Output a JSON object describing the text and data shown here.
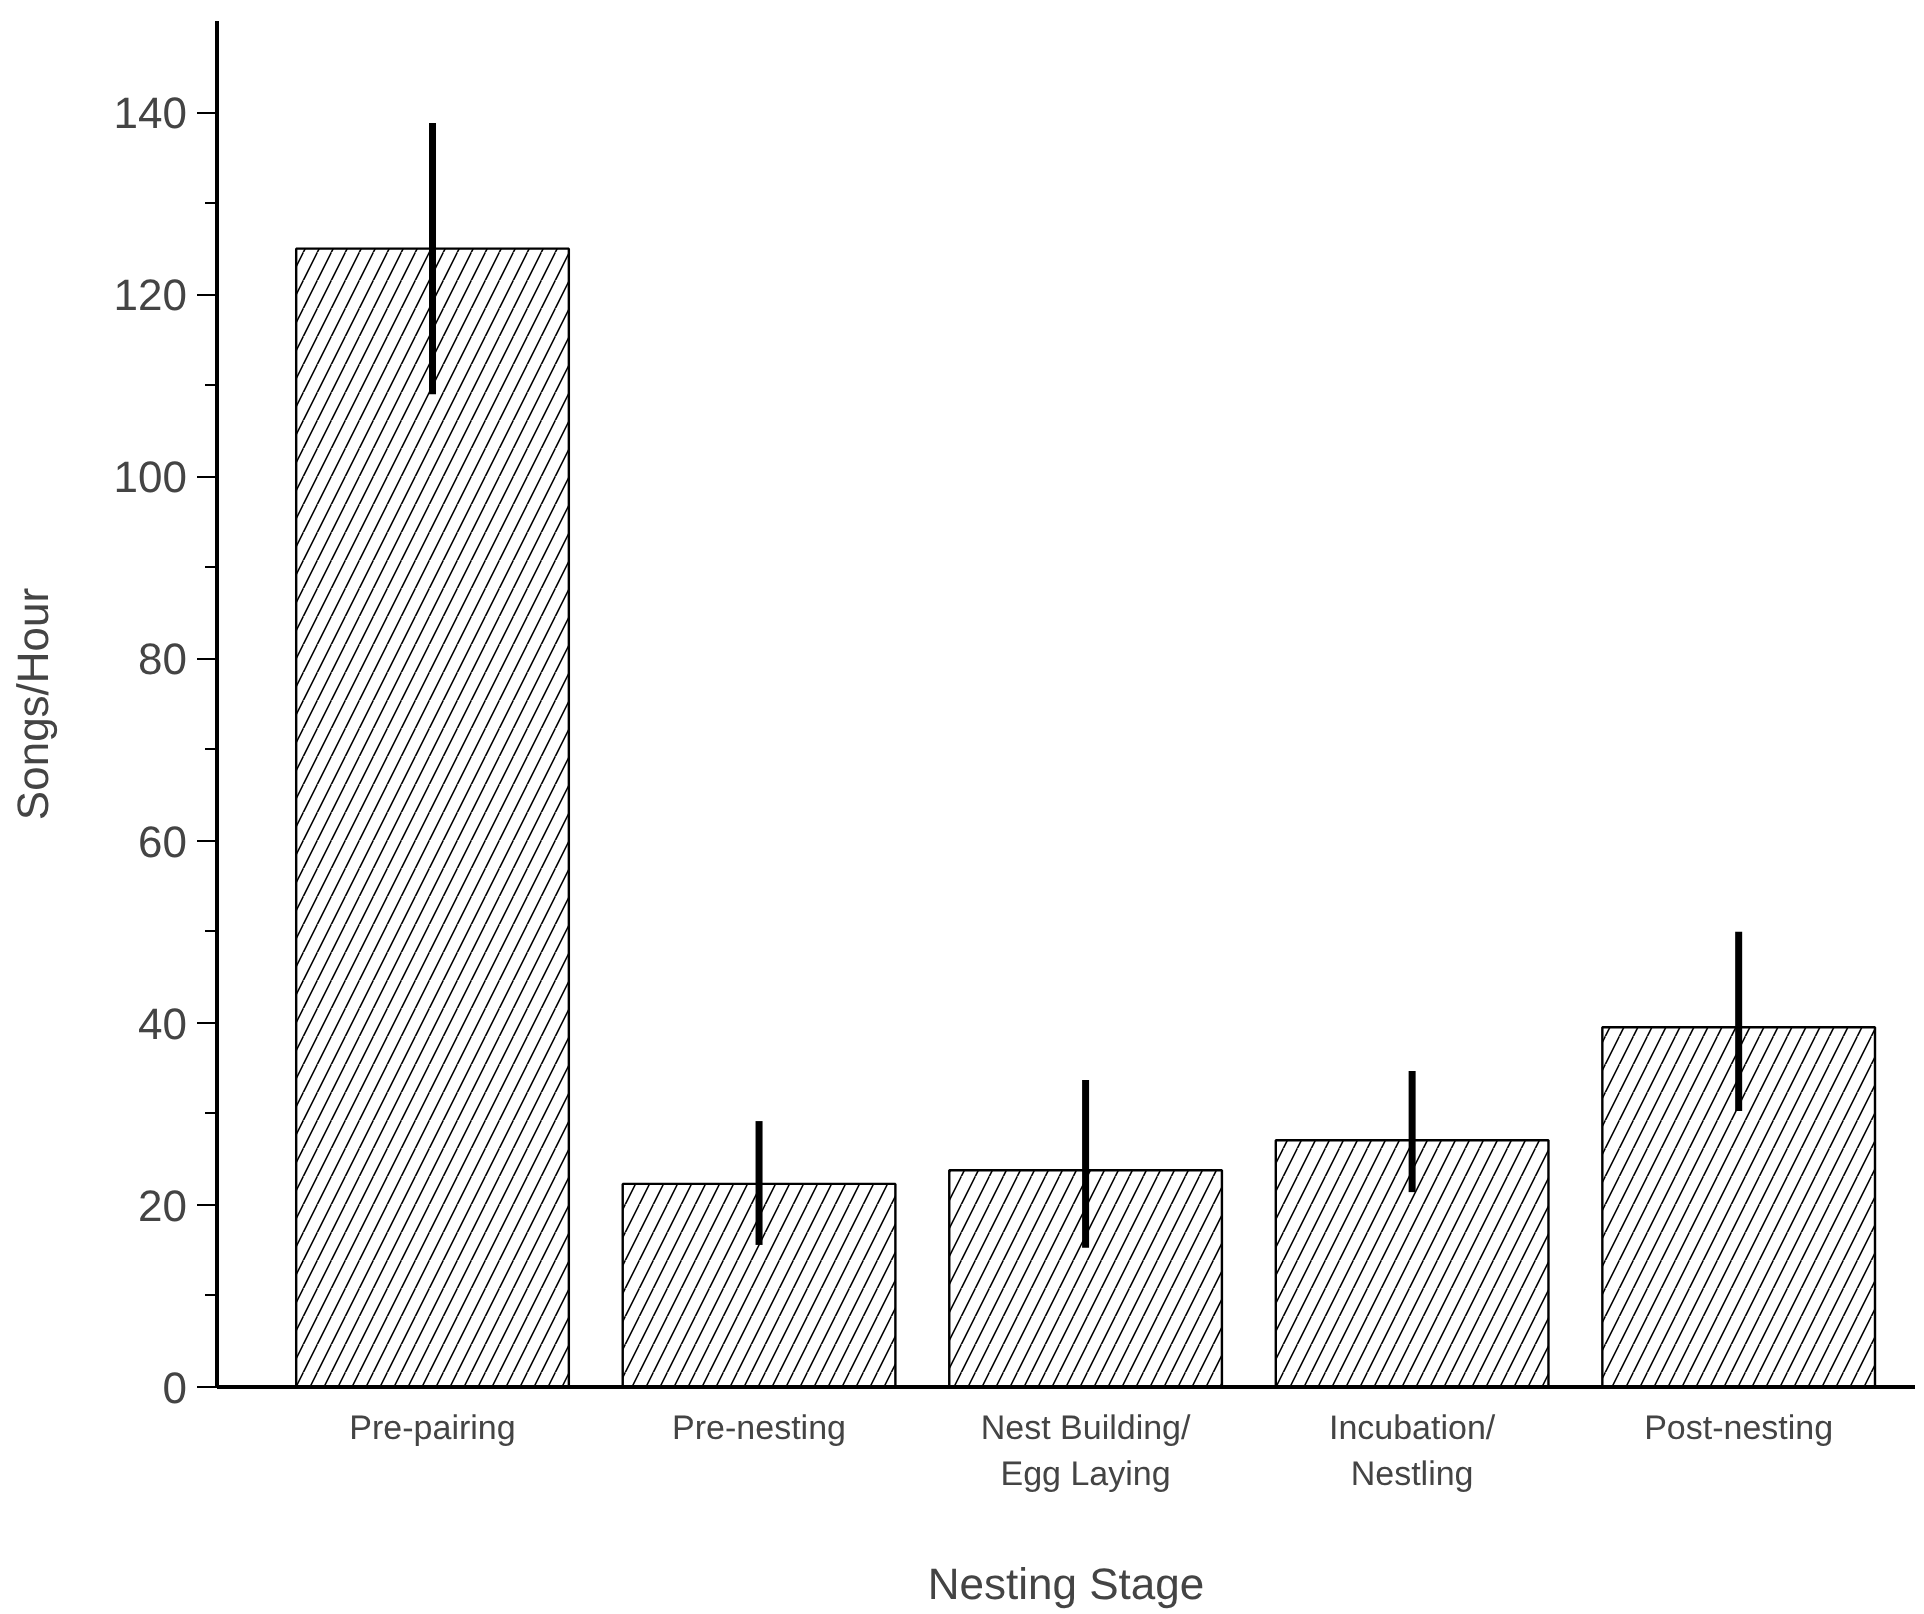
{
  "chart_data": {
    "type": "bar",
    "xlabel": "Nesting Stage",
    "ylabel": "Songs/Hour",
    "categories": [
      "Pre-pairing",
      "Pre-nesting",
      "Nest Building/\nEgg Laying",
      "Incubation/\nNestling",
      "Post-nesting"
    ],
    "values": [
      125,
      22.3,
      23.8,
      27.1,
      39.5
    ],
    "errors": [
      [
        109,
        138.8
      ],
      [
        15.6,
        29.2
      ],
      [
        15.3,
        33.7
      ],
      [
        21.4,
        34.7
      ],
      [
        30.3,
        50.0
      ]
    ],
    "color": "#000000",
    "ylim": [
      0,
      150
    ],
    "yticks": [
      0,
      {
        "value": 10,
        "label": null
      },
      20,
      {
        "value": 30,
        "label": null
      },
      40,
      {
        "value": 50,
        "label": null
      },
      60,
      {
        "value": 70,
        "label": null
      },
      80,
      {
        "value": 90,
        "label": null
      },
      100,
      {
        "value": 110,
        "label": null
      },
      120,
      {
        "value": 130,
        "label": null
      },
      140
    ],
    "grid": false
  }
}
